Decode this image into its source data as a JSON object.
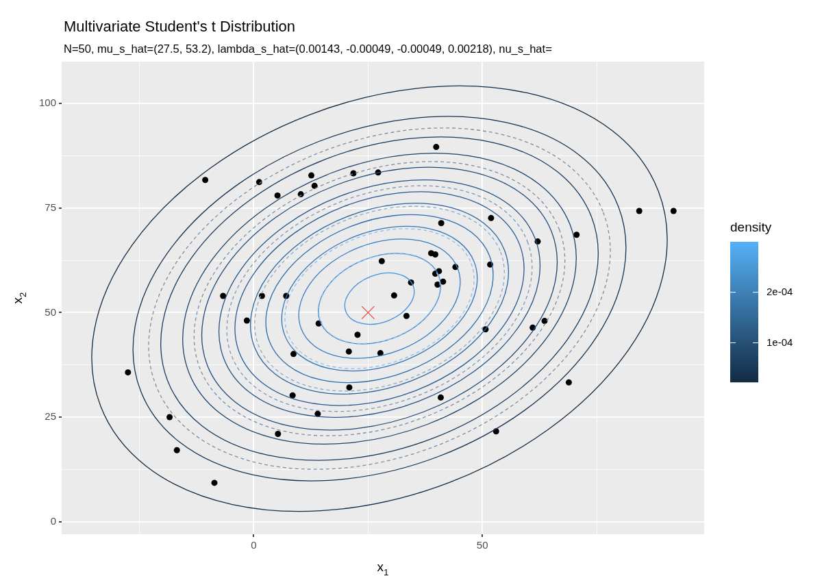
{
  "chart_data": {
    "type": "scatter",
    "title": "Multivariate Student's t Distribution",
    "subtitle": "N=50, mu_s_hat=(27.5, 53.2), lambda_s_hat=(0.00143, -0.00049, -0.00049, 0.00218), nu_s_hat=",
    "xlabel": "x$_{1}$",
    "ylabel": "x$_{2}$",
    "clabel": "density",
    "clim": [
      2.2e-05,
      0.0003
    ],
    "cticks": [
      {
        "value": 0.0001,
        "label": "1e-04"
      },
      {
        "value": 0.0002,
        "label": "2e-04"
      }
    ],
    "xlim": [
      -42,
      98.5
    ],
    "ylim": [
      -3,
      110
    ],
    "xticks": [
      {
        "value": -25,
        "label": null
      },
      0,
      {
        "value": 25,
        "label": null
      },
      50,
      {
        "value": 75,
        "label": null
      }
    ],
    "yticks": [
      0,
      {
        "value": 12.5,
        "label": null
      },
      25,
      {
        "value": 37.5,
        "label": null
      },
      50,
      {
        "value": 62.5,
        "label": null
      },
      75,
      {
        "value": 87.5,
        "label": null
      },
      100
    ],
    "grid": true,
    "series": [
      {
        "type": "scatter",
        "marker": "circle",
        "color": "#000000",
        "x": [
          -10.6,
          1.2,
          5.2,
          10.3,
          12.6,
          13.3,
          21.8,
          27.2,
          28.0,
          -6.7,
          1.8,
          7.1,
          39.9,
          51.9,
          41.0,
          84.3,
          91.8,
          70.6,
          62.1,
          38.8,
          39.7,
          44.1,
          51.7,
          39.7,
          40.5,
          34.4,
          41.4,
          40.2,
          30.7,
          -1.5,
          14.2,
          22.7,
          20.8,
          27.7,
          8.7,
          -27.5,
          20.9,
          8.5,
          14.0,
          5.3,
          -18.4,
          -16.8,
          -8.6,
          33.4,
          50.7,
          61.0,
          63.6,
          40.9,
          68.9,
          53.0
        ],
        "values": [
          81.7,
          81.2,
          78.0,
          78.3,
          82.8,
          80.3,
          83.3,
          83.5,
          62.3,
          54.0,
          54.0,
          54.0,
          89.6,
          72.6,
          71.4,
          74.3,
          74.3,
          68.6,
          67.0,
          64.2,
          63.9,
          60.9,
          61.5,
          59.3,
          59.9,
          57.2,
          57.4,
          56.7,
          54.1,
          48.1,
          47.4,
          44.7,
          40.7,
          40.3,
          40.1,
          35.7,
          32.1,
          30.2,
          25.8,
          21.0,
          25.0,
          17.1,
          9.3,
          49.2,
          46.0,
          46.4,
          48.0,
          29.7,
          33.3,
          21.6
        ]
      },
      {
        "type": "scatter",
        "marker": "cross",
        "color": "#e8413c",
        "x": [
          25
        ],
        "values": [
          50
        ]
      }
    ]
  }
}
